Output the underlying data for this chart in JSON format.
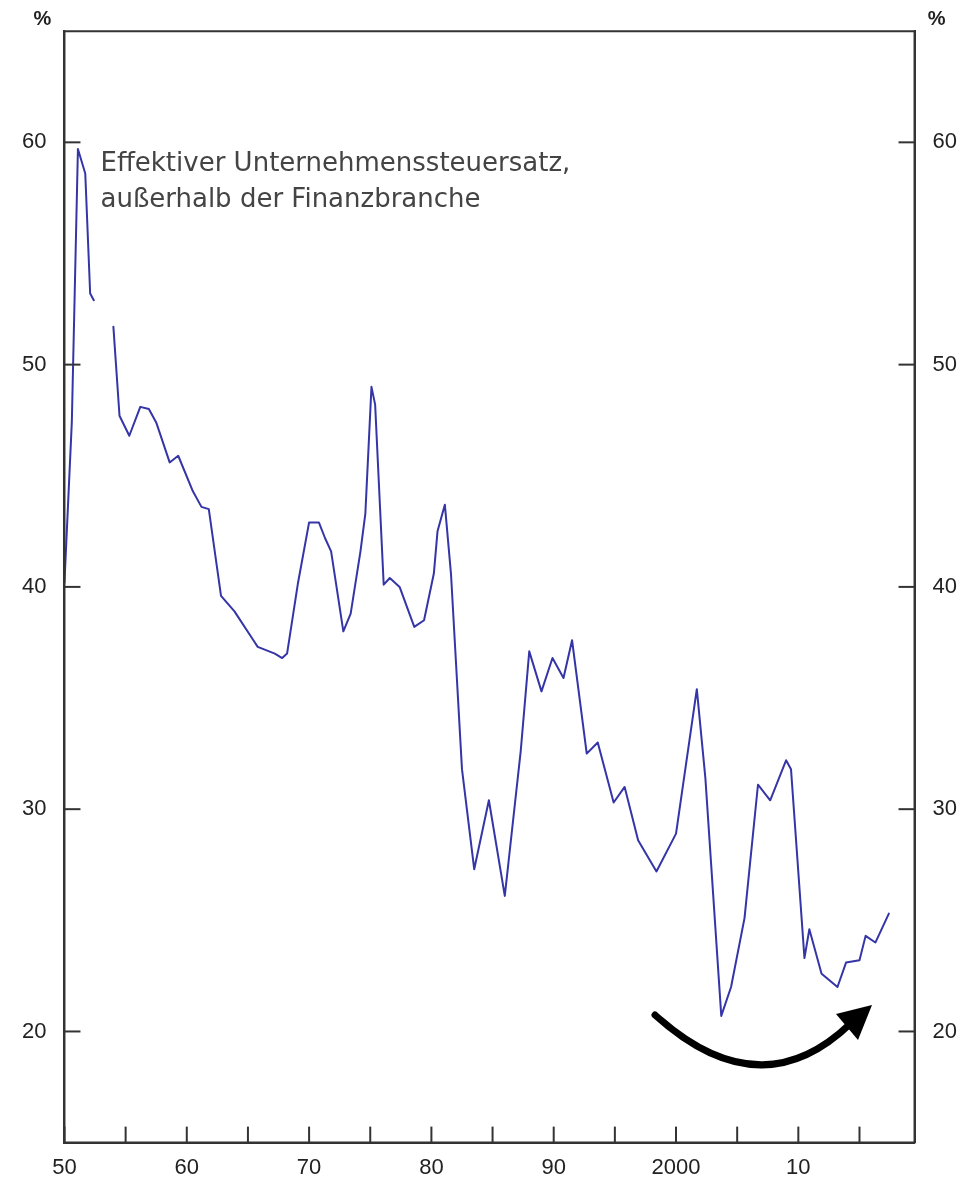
{
  "chart_data": {
    "type": "line",
    "ylabel": "%",
    "y2label": "%",
    "annotations": [
      "Effektiver Unternehmenssteuersatz, außerhalb der Finanzbranche"
    ],
    "x": [
      1950.0,
      1950.6,
      1951.1,
      1951.7,
      1952.1,
      1952.4,
      1953.2,
      1954.0,
      1954.5,
      1955.3,
      1956.2,
      1956.9,
      1957.5,
      1958.6,
      1959.3,
      1960.5,
      1961.2,
      1961.8,
      1962.8,
      1963.9,
      1965.8,
      1967.2,
      1967.8,
      1968.2,
      1969.1,
      1970.0,
      1970.8,
      1971.3,
      1971.8,
      1972.8,
      1973.4,
      1974.2,
      1974.6,
      1975.1,
      1975.4,
      1976.1,
      1976.6,
      1977.4,
      1978.6,
      1979.4,
      1980.2,
      1980.5,
      1981.1,
      1981.6,
      1982.5,
      1983.5,
      1984.7,
      1986.0,
      1987.3,
      1988.0,
      1989.0,
      1989.9,
      1990.8,
      1991.5,
      1992.7,
      1993.6,
      1994.9,
      1995.8,
      1996.9,
      1998.4,
      2000.0,
      2001.7,
      2002.4,
      2003.7,
      2004.5,
      2005.6,
      2006.7,
      2007.7,
      2009.0,
      2009.4,
      2010.5,
      2010.9,
      2011.9,
      2013.2,
      2013.9,
      2015.0,
      2015.5,
      2016.3,
      2017.4
    ],
    "series": [
      {
        "color": "#3535a8",
        "values": [
          40.2,
          47.4,
          59.7,
          58.6,
          53.2,
          52.9,
          null,
          51.7,
          47.7,
          46.8,
          48.1,
          48.0,
          47.4,
          45.6,
          45.9,
          44.3,
          43.6,
          43.5,
          39.6,
          38.9,
          37.3,
          37.0,
          36.8,
          37.0,
          40.2,
          42.9,
          42.9,
          42.2,
          41.6,
          38.0,
          38.8,
          41.6,
          43.3,
          49.0,
          48.2,
          40.1,
          40.4,
          40.0,
          38.2,
          38.5,
          40.6,
          42.5,
          43.7,
          40.6,
          31.8,
          27.3,
          30.4,
          26.1,
          32.6,
          37.1,
          35.3,
          36.8,
          35.9,
          37.6,
          32.5,
          33.0,
          30.3,
          31.0,
          28.6,
          27.2,
          28.9,
          35.4,
          31.4,
          20.7,
          22.0,
          25.1,
          31.1,
          30.4,
          32.2,
          31.8,
          23.3,
          24.6,
          22.6,
          22.0,
          23.1,
          23.2,
          24.3,
          24.0,
          25.3
        ]
      }
    ],
    "xlim": [
      1950,
      2019.5
    ],
    "xticks": [
      {
        "value": 1950,
        "label": "50"
      },
      {
        "value": 1955,
        "label": null
      },
      {
        "value": 1960,
        "label": "60"
      },
      {
        "value": 1965,
        "label": null
      },
      {
        "value": 1970,
        "label": "70"
      },
      {
        "value": 1975,
        "label": null
      },
      {
        "value": 1980,
        "label": "80"
      },
      {
        "value": 1985,
        "label": null
      },
      {
        "value": 1990,
        "label": "90"
      },
      {
        "value": 1995,
        "label": null
      },
      {
        "value": 2000,
        "label": "2000"
      },
      {
        "value": 2005,
        "label": null
      },
      {
        "value": 2010,
        "label": "10"
      },
      {
        "value": 2015,
        "label": null
      }
    ],
    "ylim": [
      15,
      65
    ],
    "yticks": [
      20,
      30,
      40,
      50,
      60
    ],
    "y2lim": [
      15,
      65
    ],
    "y2ticks": [
      20,
      30,
      40,
      50,
      60
    ],
    "grid": false,
    "legend": false,
    "marker": "none",
    "line_style": "solid"
  }
}
